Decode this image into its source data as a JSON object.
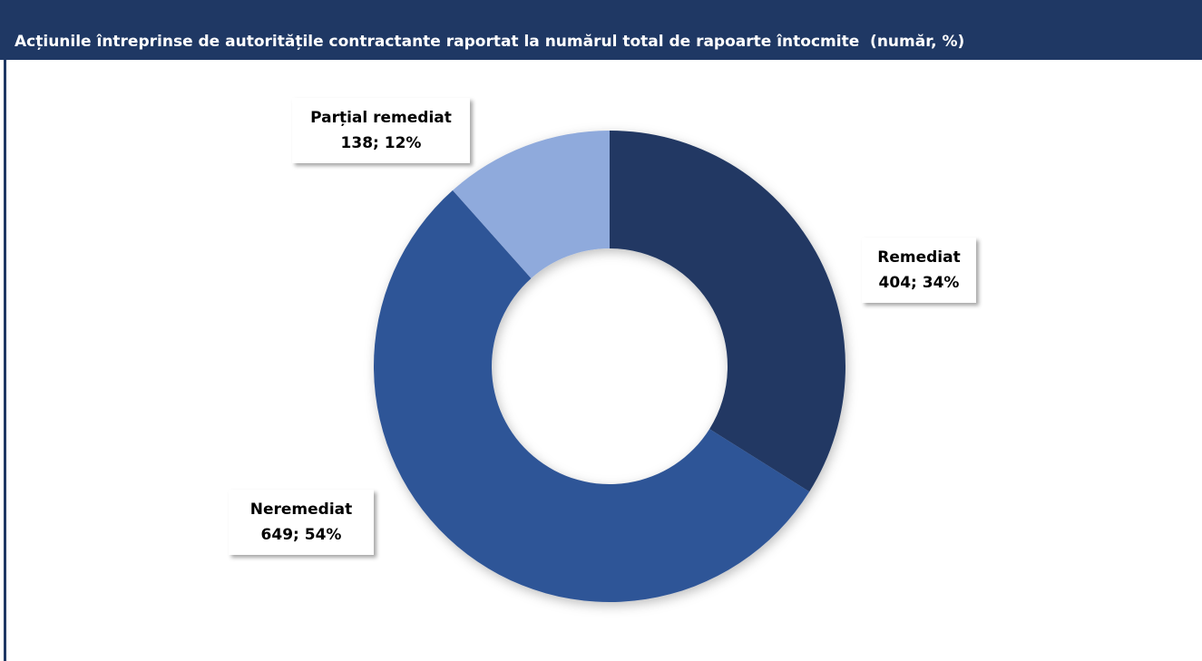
{
  "chart_data": {
    "type": "pie",
    "donut": true,
    "title": "Acțiunile întreprinse de autoritățile contractante raportat la numărul total de rapoarte întocmite  (număr, %)",
    "categories": [
      "Remediat",
      "Neremediat",
      "Parțial remediat"
    ],
    "values": [
      404,
      649,
      138
    ],
    "value_labels": [
      "404; 34%",
      "649; 54%",
      "138; 12%"
    ],
    "colors": [
      "#203864",
      "#2f5597",
      "#8faadc"
    ]
  }
}
